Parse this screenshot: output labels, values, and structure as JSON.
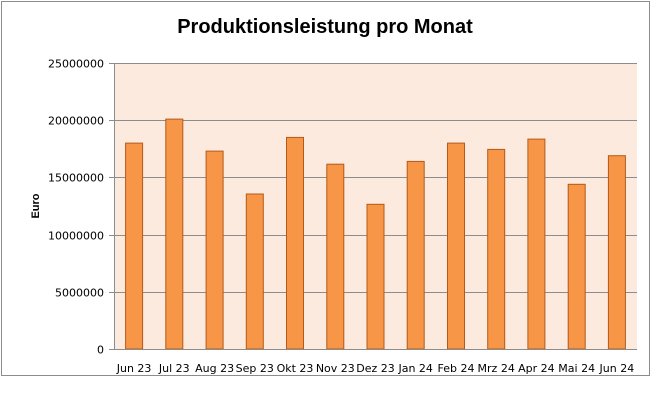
{
  "chart_data": {
    "type": "bar",
    "title": "Produktionsleistung pro Monat",
    "xlabel": "",
    "ylabel": "Euro",
    "categories": [
      "Jun 23",
      "Jul 23",
      "Aug 23",
      "Sep 23",
      "Okt 23",
      "Nov 23",
      "Dez 23",
      "Jan 24",
      "Feb 24",
      "Mrz 24",
      "Apr 24",
      "Mai 24",
      "Jun 24"
    ],
    "values": [
      18000000,
      20100000,
      17300000,
      13550000,
      18500000,
      16150000,
      12650000,
      16400000,
      18000000,
      17450000,
      18350000,
      14400000,
      16900000
    ],
    "ylim": [
      0,
      25000000
    ],
    "yticks": [
      "0",
      "5000000",
      "10000000",
      "15000000",
      "20000000",
      "25000000"
    ],
    "ytick_values": [
      0,
      5000000,
      10000000,
      15000000,
      20000000,
      25000000
    ],
    "grid": true,
    "legend": "none",
    "colors": {
      "bar_fill": "#F79646",
      "bar_stroke": "#B3591A",
      "plot_background": "#FDEADF",
      "gridline": "#8C8C8C",
      "axis": "#8C8C8C"
    }
  }
}
